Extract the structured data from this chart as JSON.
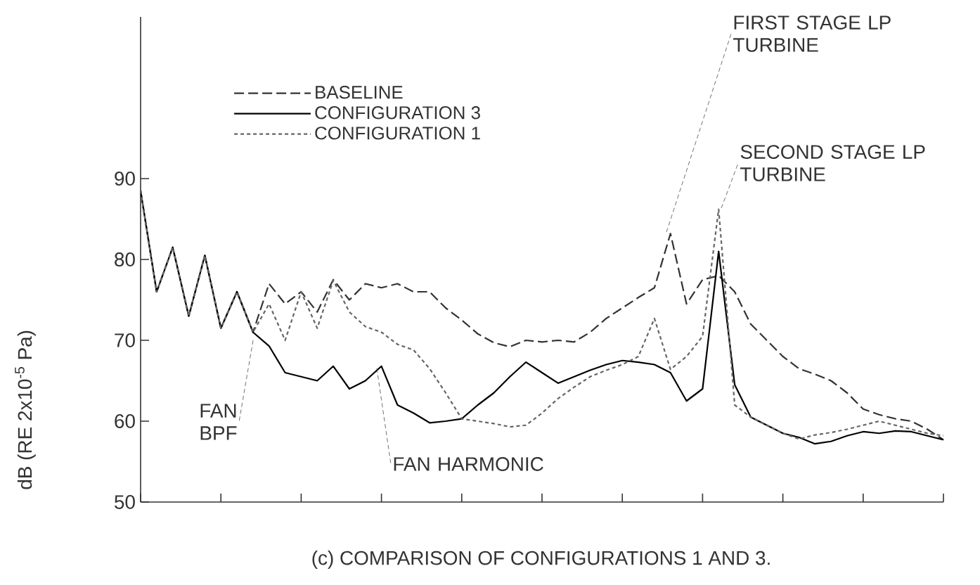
{
  "chart_data": {
    "type": "line",
    "ylabel": "dB (RE 2x10$^{-5}$ Pa)",
    "ylim": [
      50,
      110
    ],
    "categories": [
      null,
      null,
      null,
      null,
      null,
      null,
      null,
      null,
      null,
      null,
      null,
      null,
      null,
      null,
      null,
      null,
      null,
      null,
      null,
      null,
      null,
      null,
      null,
      null,
      null,
      null,
      null,
      null,
      null,
      null,
      null,
      null,
      null,
      null,
      null,
      null,
      null,
      null,
      null,
      null,
      null,
      null,
      null,
      null,
      null,
      null,
      null,
      null,
      null,
      null,
      null
    ],
    "yticks": [
      50,
      60,
      70,
      80,
      90
    ],
    "legend": "top left",
    "grid": false,
    "series": [
      {
        "name": "BASELINE",
        "color": "#333333",
        "line_style": "dashed",
        "values": [
          88.5,
          76,
          81.5,
          73,
          80.5,
          71.5,
          76,
          71,
          77,
          74.5,
          76,
          73.5,
          77.5,
          75,
          77,
          76.5,
          77,
          76,
          76,
          74,
          72.5,
          70.8,
          69.7,
          69.2,
          70,
          69.8,
          70,
          69.8,
          71,
          72.7,
          74,
          75.3,
          76.5,
          83.2,
          74.5,
          77.5,
          78,
          76,
          72,
          70,
          68,
          66.5,
          65.8,
          65,
          63.5,
          61.5,
          60.8,
          60.3,
          60,
          59,
          57.7
        ]
      },
      {
        "name": "CONFIGURATION 3",
        "color": "#000000",
        "line_style": "solid",
        "values": [
          88.5,
          76,
          81.5,
          73,
          80.5,
          71.5,
          76,
          71,
          69.3,
          66,
          65.5,
          65,
          66.8,
          64,
          65,
          66.8,
          62,
          61,
          59.8,
          60,
          60.3,
          62,
          63.5,
          65.5,
          67.3,
          66,
          64.7,
          65.5,
          66.3,
          67,
          67.5,
          67.3,
          67,
          66,
          62.5,
          64,
          81,
          64.5,
          60.5,
          59.5,
          58.5,
          58,
          57.2,
          57.5,
          58.2,
          58.7,
          58.5,
          58.8,
          58.7,
          58.2,
          57.7
        ]
      },
      {
        "name": "CONFIGURATION 1",
        "color": "#666666",
        "line_style": "dotted",
        "values": [
          88.5,
          76,
          81.5,
          73,
          80.5,
          71.5,
          76,
          71,
          74.5,
          70,
          76,
          71.5,
          77.4,
          73.5,
          71.7,
          71,
          69.5,
          68.8,
          66.5,
          63.5,
          60.3,
          60,
          59.7,
          59.3,
          59.5,
          61,
          62.8,
          64.2,
          65.5,
          66.3,
          67,
          68,
          72.7,
          66.4,
          68,
          70.5,
          86.2,
          62,
          60.5,
          59.5,
          58.5,
          57.8,
          58.3,
          58.6,
          59,
          59.5,
          60,
          59.5,
          59,
          58.5,
          58.2
        ]
      }
    ],
    "annotations": [
      "FAN BPF",
      "FAN HARMONIC",
      "FIRST STAGE LP TURBINE",
      "SECOND STAGE LP TURBINE",
      "(c) COMPARISON OF CONFIGURATIONS 1 AND 3."
    ]
  }
}
